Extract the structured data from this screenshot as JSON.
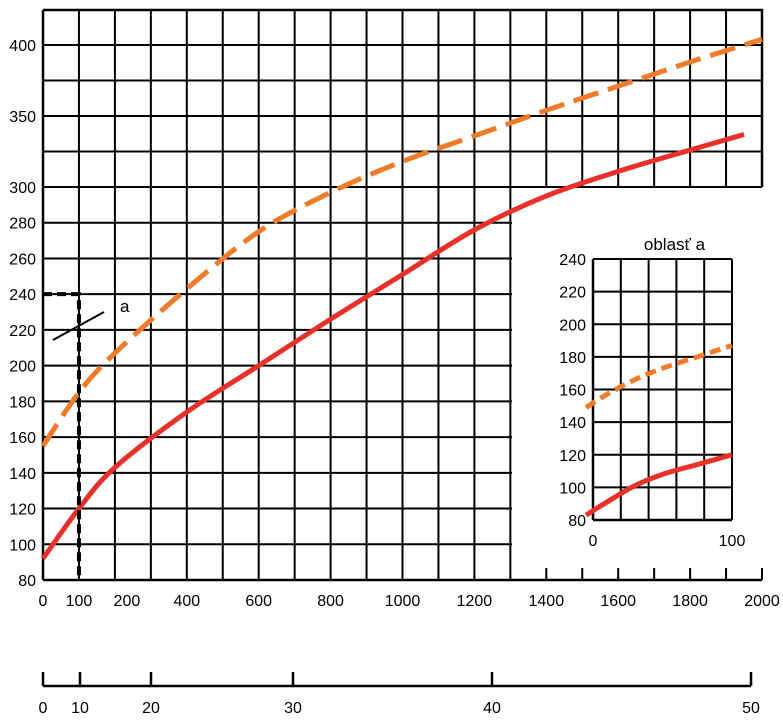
{
  "chart_data": [
    {
      "type": "line",
      "title": "",
      "xlabel": "",
      "ylabel": "",
      "x_ticks": [
        "0",
        "100",
        "200",
        "400",
        "600",
        "800",
        "1000",
        "1200",
        "1400",
        "1600",
        "1800",
        "2000"
      ],
      "y_ticks": [
        "80",
        "100",
        "120",
        "140",
        "160",
        "180",
        "200",
        "220",
        "240",
        "260",
        "280",
        "300",
        "350",
        "400"
      ],
      "secondary_x_ticks": [
        "0",
        "10",
        "20",
        "30",
        "40",
        "50"
      ],
      "annotation": "a",
      "reading_line": {
        "x": 100,
        "y": 240
      },
      "series": [
        {
          "style": "dashed",
          "color": "#f07b2a",
          "x": [
            0,
            100,
            200,
            400,
            600,
            800,
            1000,
            1200,
            1400,
            1600,
            1800,
            2000
          ],
          "y": [
            155,
            185,
            207,
            243,
            275,
            297,
            318,
            336,
            354,
            371,
            388,
            404
          ]
        },
        {
          "style": "solid",
          "color": "#e8312b",
          "x": [
            0,
            100,
            200,
            400,
            600,
            800,
            1000,
            1200,
            1400,
            1600,
            1800,
            1950
          ],
          "y": [
            92,
            120,
            143,
            174,
            200,
            226,
            251,
            276,
            295,
            311,
            326,
            337
          ]
        }
      ]
    },
    {
      "type": "line",
      "title": "oblasť a",
      "xlabel": "",
      "ylabel": "",
      "x_ticks": [
        "0",
        "100"
      ],
      "y_ticks": [
        "80",
        "100",
        "120",
        "140",
        "160",
        "180",
        "200",
        "220",
        "240"
      ],
      "xlim": [
        0,
        100
      ],
      "ylim": [
        80,
        240
      ],
      "series": [
        {
          "style": "dashed",
          "color": "#f07b2a",
          "x": [
            -5,
            10,
            30,
            50,
            75,
            100
          ],
          "y": [
            149,
            157,
            166,
            173,
            180,
            187
          ]
        },
        {
          "style": "solid",
          "color": "#e8312b",
          "x": [
            -5,
            10,
            30,
            50,
            75,
            100
          ],
          "y": [
            83,
            91,
            101,
            108,
            114,
            120
          ]
        }
      ]
    }
  ]
}
